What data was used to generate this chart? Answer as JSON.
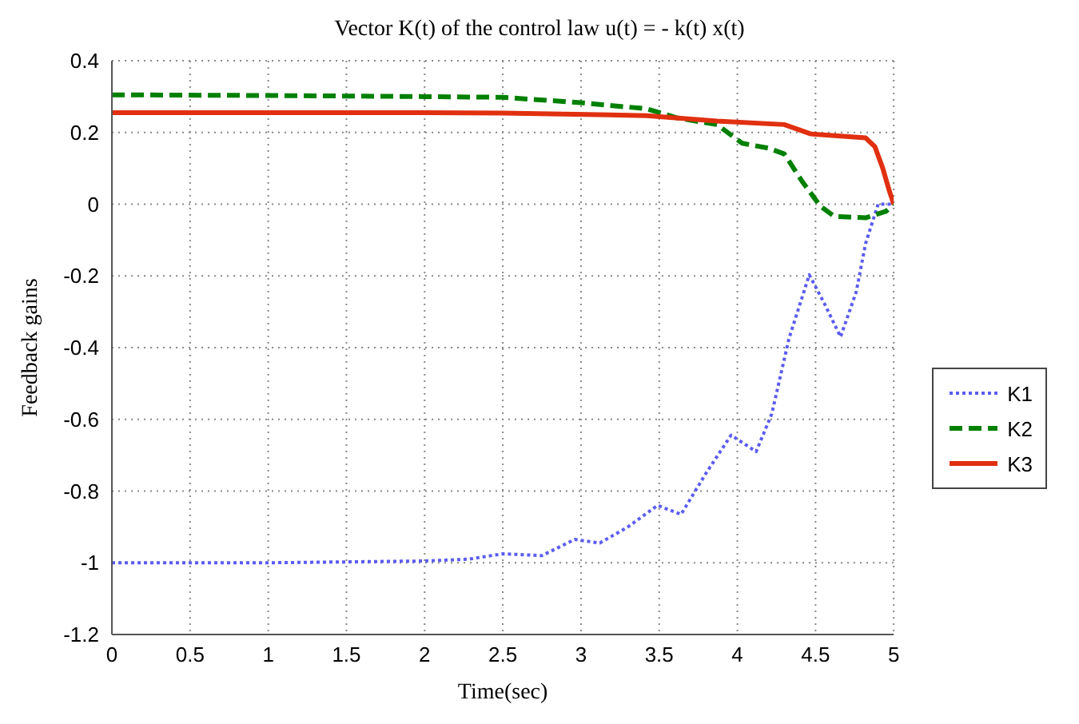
{
  "chart_data": {
    "type": "line",
    "title": "Vector K(t) of the control law u(t) = - k(t) x(t)",
    "xlabel": "Time(sec)",
    "ylabel": "Feedback gains",
    "xlim": [
      0,
      5
    ],
    "xticks": [
      0,
      0.5,
      1,
      1.5,
      2,
      2.5,
      3,
      3.5,
      4,
      4.5,
      5
    ],
    "ylim": [
      -1.2,
      0.4
    ],
    "yticks": [
      -1.2,
      -1,
      -0.8,
      -0.6,
      -0.4,
      -0.2,
      0,
      0.2,
      0.4
    ],
    "grid": true,
    "legend": "right",
    "marker": "none",
    "series": [
      {
        "name": "K1",
        "color": "#5c5cf0",
        "line_style": "dotted",
        "x": [
          0,
          1,
          2,
          2.28,
          2.5,
          2.75,
          2.96,
          3.12,
          3.3,
          3.49,
          3.64,
          3.8,
          3.96,
          4.12,
          4.22,
          4.33,
          4.46,
          4.56,
          4.66,
          4.76,
          4.82,
          4.9,
          5
        ],
        "values": [
          -1.0,
          -1.0,
          -0.995,
          -0.99,
          -0.975,
          -0.98,
          -0.935,
          -0.945,
          -0.9,
          -0.84,
          -0.865,
          -0.75,
          -0.644,
          -0.69,
          -0.585,
          -0.375,
          -0.197,
          -0.28,
          -0.37,
          -0.245,
          -0.11,
          0,
          0
        ]
      },
      {
        "name": "K2",
        "color": "#008000",
        "line_style": "dashed",
        "x": [
          0,
          1,
          2,
          2.5,
          3,
          3.42,
          3.62,
          3.87,
          4.03,
          4.2,
          4.3,
          4.42,
          4.53,
          4.62,
          4.82,
          4.95,
          5
        ],
        "values": [
          0.305,
          0.303,
          0.3,
          0.298,
          0.283,
          0.266,
          0.24,
          0.222,
          0.17,
          0.156,
          0.14,
          0.06,
          -0.005,
          -0.034,
          -0.038,
          -0.02,
          0
        ]
      },
      {
        "name": "K3",
        "color": "#e03010",
        "line_style": "solid",
        "x": [
          0,
          1,
          2,
          2.5,
          3.42,
          3.87,
          4.3,
          4.47,
          4.82,
          4.88,
          4.93,
          4.97,
          5
        ],
        "values": [
          0.255,
          0.255,
          0.255,
          0.254,
          0.247,
          0.232,
          0.222,
          0.196,
          0.185,
          0.16,
          0.1,
          0.04,
          0
        ]
      }
    ]
  }
}
